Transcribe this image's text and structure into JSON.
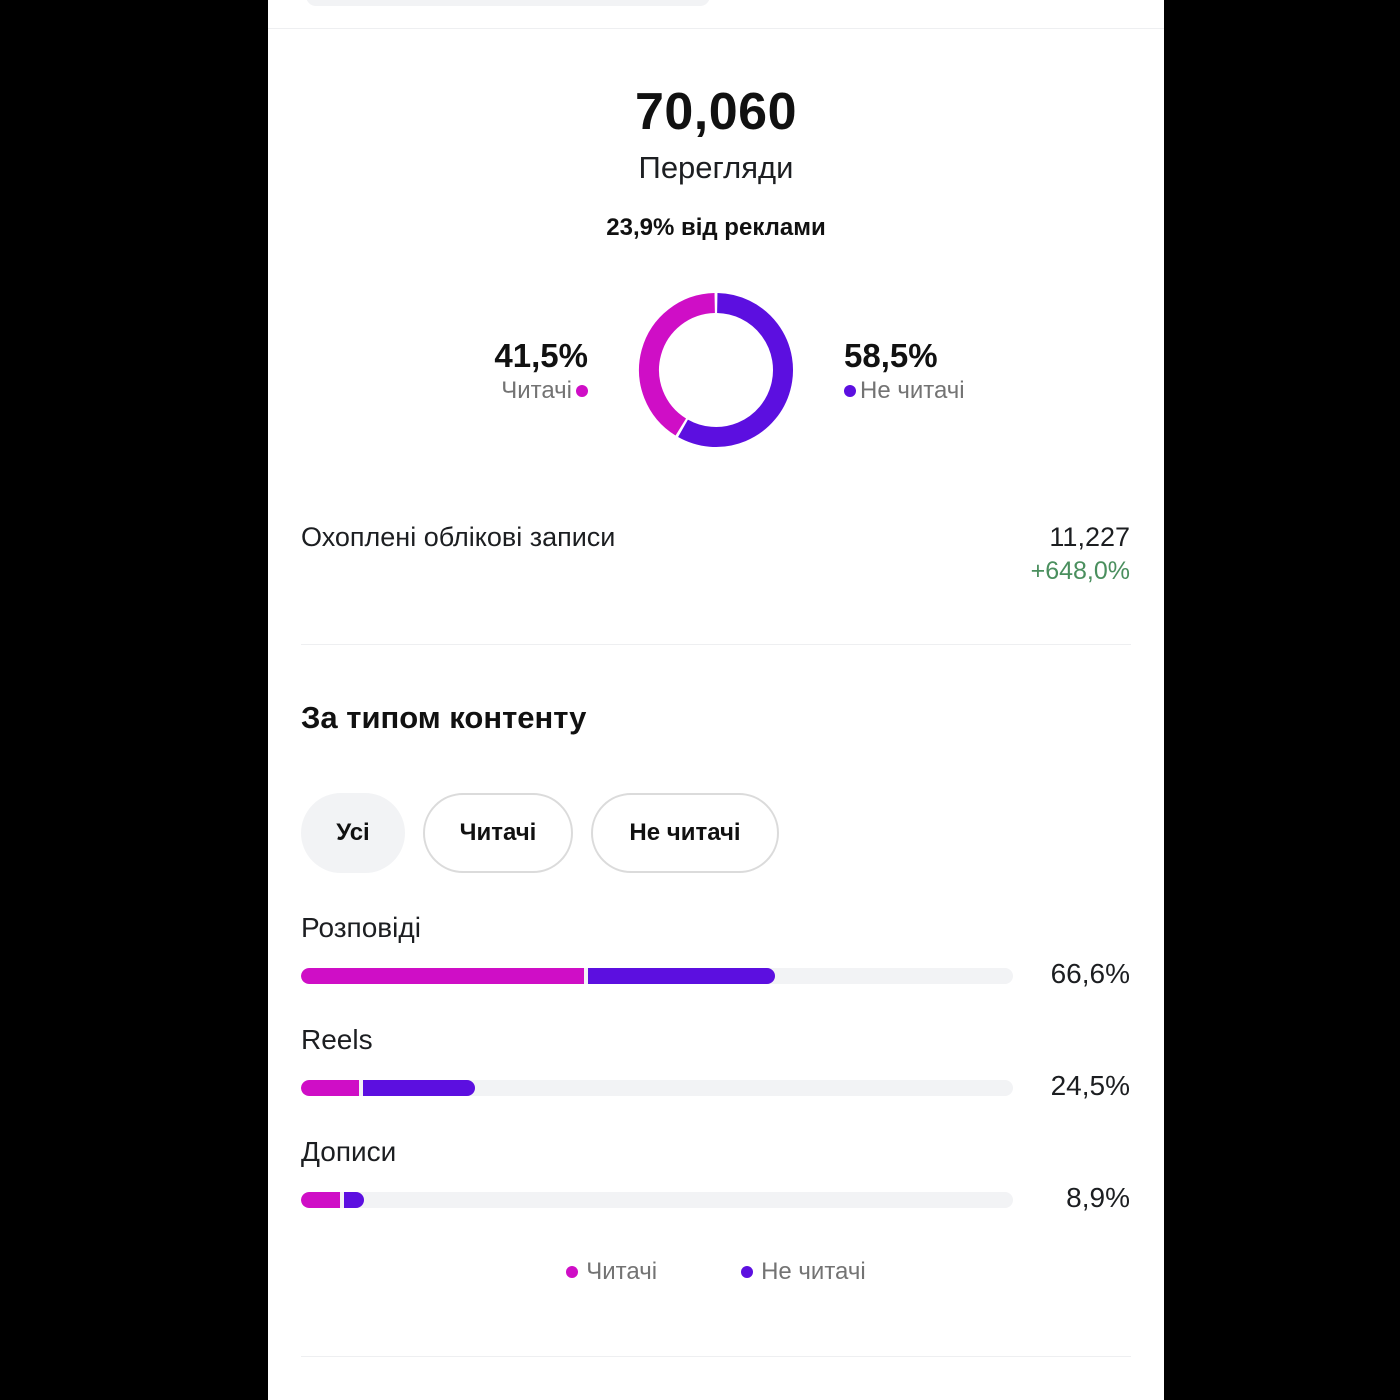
{
  "summary": {
    "views_value": "70,060",
    "views_label": "Перегляди",
    "ads_share": "23,9% від реклами"
  },
  "donut": {
    "followers": {
      "percent_label": "41,5%",
      "name": "Читачі",
      "value": 41.5
    },
    "non_followers": {
      "percent_label": "58,5%",
      "name": "Не читачі",
      "value": 58.5
    }
  },
  "reach": {
    "label": "Охоплені облікові записи",
    "value": "11,227",
    "change": "+648,0%"
  },
  "content_type": {
    "title": "За типом контенту",
    "filters": [
      "Усі",
      "Читачі",
      "Не читачі"
    ],
    "selected_filter": "Усі",
    "rows": [
      {
        "label": "Розповіді",
        "percent_label": "66,6%",
        "total": 66.6,
        "followers_part": 39.8,
        "non_followers_part": 26.8
      },
      {
        "label": "Reels",
        "percent_label": "24,5%",
        "total": 24.5,
        "followers_part": 8.2,
        "non_followers_part": 16.3
      },
      {
        "label": "Дописи",
        "percent_label": "8,9%",
        "total": 8.9,
        "followers_part": 5.5,
        "non_followers_part": 3.4
      }
    ],
    "legend": [
      "Читачі",
      "Не читачі"
    ]
  },
  "colors": {
    "followers": "#cf0ec6",
    "non_followers": "#5c0fe0",
    "positive_change": "#4a8f5e",
    "track": "#f2f3f5"
  }
}
